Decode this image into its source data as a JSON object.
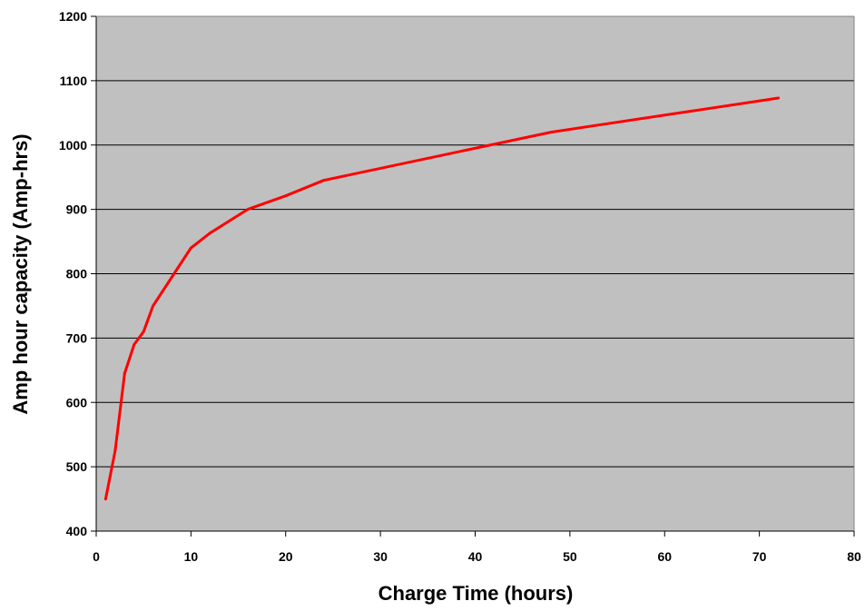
{
  "chart_data": {
    "type": "line",
    "title": "",
    "xlabel": "Charge Time (hours)",
    "ylabel": "Amp hour capacity (Amp-hrs)",
    "xlim": [
      0,
      80
    ],
    "ylim": [
      400,
      1200
    ],
    "x_ticks": [
      0,
      10,
      20,
      30,
      40,
      50,
      60,
      70,
      80
    ],
    "y_ticks": [
      400,
      500,
      600,
      700,
      800,
      900,
      1000,
      1100,
      1200
    ],
    "grid": "horizontal",
    "legend": "none",
    "colors": {
      "plot_background": "#c0c0c0",
      "line": "#ff0000",
      "gridline": "#000000",
      "axis": "#000000"
    },
    "series": [
      {
        "x": [
          1,
          2,
          3,
          4,
          5,
          6,
          8,
          10,
          12,
          16,
          20,
          24,
          48,
          72
        ],
        "y": [
          450,
          525,
          645,
          690,
          710,
          750,
          795,
          840,
          863,
          900,
          921,
          945,
          1020,
          1073
        ]
      }
    ]
  }
}
